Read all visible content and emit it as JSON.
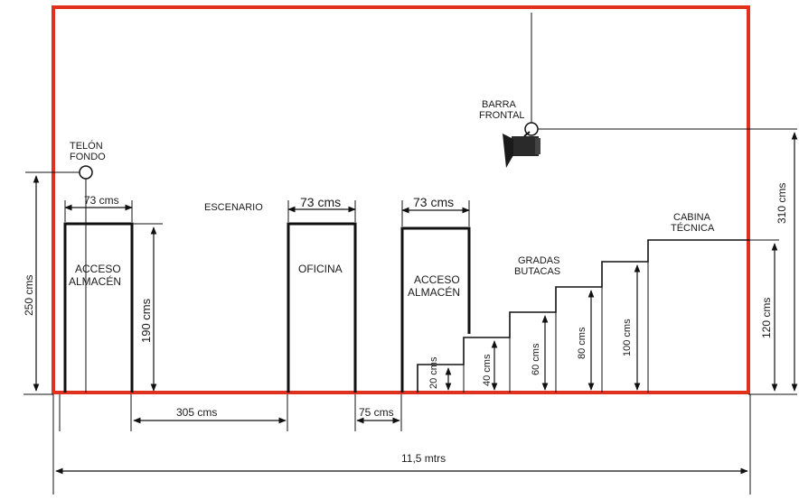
{
  "labels": {
    "telon_fondo_1": "TELÓN",
    "telon_fondo_2": "FONDO",
    "barra_frontal_1": "BARRA",
    "barra_frontal_2": "FRONTAL",
    "escenario": "ESCENARIO",
    "acceso_almacen_left_1": "ACCESO",
    "acceso_almacen_left_2": "ALMACÉN",
    "oficina": "OFICINA",
    "acceso_almacen_right_1": "ACCESO",
    "acceso_almacen_right_2": "ALMACÉN",
    "gradas_1": "GRADAS",
    "gradas_2": "BUTACAS",
    "cabina_1": "CABINA",
    "cabina_2": "TÉCNICA"
  },
  "dimensions": {
    "door_left_width": "73 cms",
    "door_office_width": "73 cms",
    "door_right_width": "73 cms",
    "left_height": "250 cms",
    "door_height": "190 cms",
    "gap_305": "305 cms",
    "gap_75": "75 cms",
    "total_width": "11,5 mtrs",
    "right_height_310": "310 cms",
    "right_height_120": "120 cms",
    "step_20": "20 cms",
    "step_40": "40 cms",
    "step_60": "60 cms",
    "step_80": "80 cms",
    "step_100": "100 cms"
  },
  "colors": {
    "frame": "#e0301e",
    "lines": "#111111"
  }
}
